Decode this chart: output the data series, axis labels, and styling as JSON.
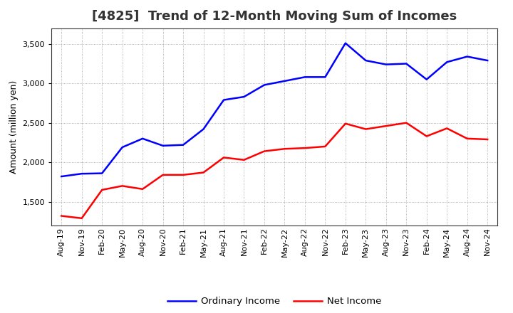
{
  "title": "[4825]  Trend of 12-Month Moving Sum of Incomes",
  "ylabel": "Amount (million yen)",
  "ylim": [
    1200,
    3700
  ],
  "yticks": [
    1500,
    2000,
    2500,
    3000,
    3500
  ],
  "background_color": "#ffffff",
  "grid_color": "#999999",
  "x_labels": [
    "Aug-19",
    "Nov-19",
    "Feb-20",
    "May-20",
    "Aug-20",
    "Nov-20",
    "Feb-21",
    "May-21",
    "Aug-21",
    "Nov-21",
    "Feb-22",
    "May-22",
    "Aug-22",
    "Nov-22",
    "Feb-23",
    "May-23",
    "Aug-23",
    "Nov-23",
    "Feb-24",
    "May-24",
    "Aug-24",
    "Nov-24"
  ],
  "ordinary_income": [
    1820,
    1855,
    1860,
    2190,
    2300,
    2210,
    2220,
    2420,
    2790,
    2830,
    2980,
    3030,
    3080,
    3080,
    3510,
    3290,
    3240,
    3250,
    3050,
    3270,
    3340,
    3290
  ],
  "net_income": [
    1320,
    1290,
    1650,
    1700,
    1660,
    1840,
    1840,
    1870,
    2060,
    2030,
    2140,
    2170,
    2180,
    2200,
    2490,
    2420,
    2460,
    2500,
    2330,
    2430,
    2300,
    2290
  ],
  "ordinary_income_color": "#0000ff",
  "net_income_color": "#ff0000",
  "line_width": 1.8,
  "title_fontsize": 13,
  "axis_label_fontsize": 9,
  "tick_fontsize": 8,
  "legend_fontsize": 9.5
}
